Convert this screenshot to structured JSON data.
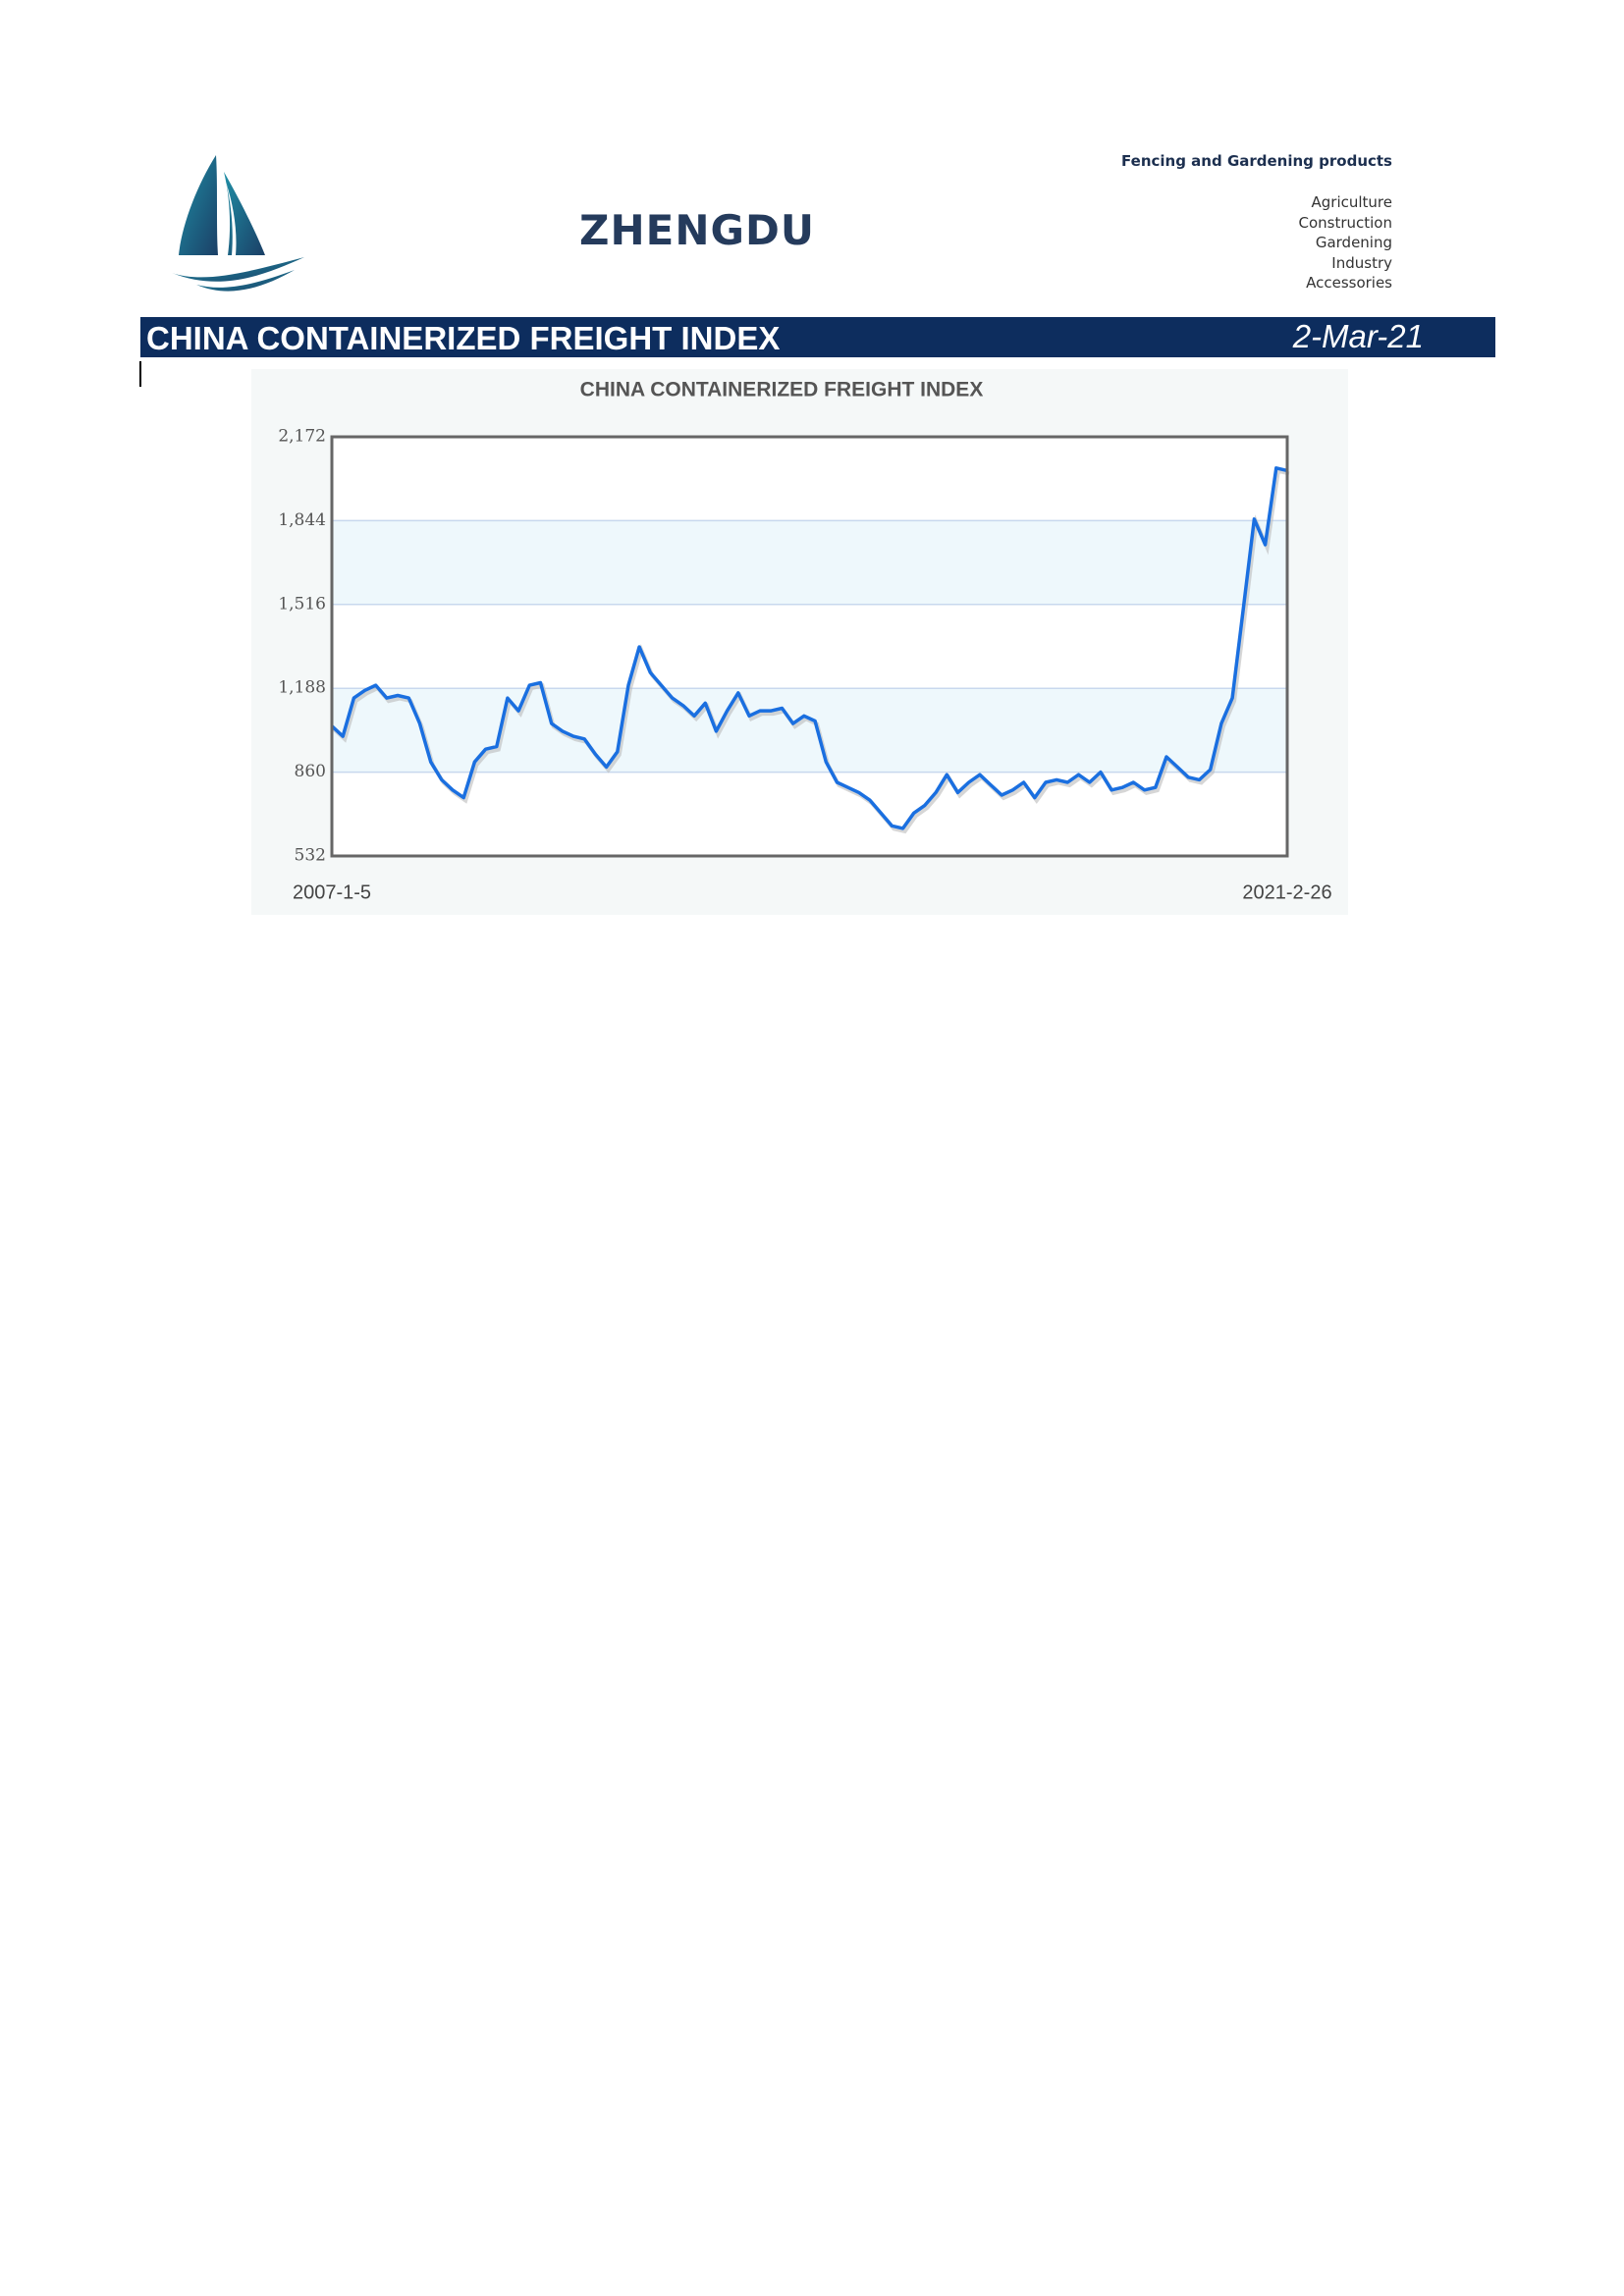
{
  "header": {
    "company": "ZHENGDU",
    "tagline": "Fencing and Gardening products",
    "products": [
      "Agriculture",
      "Construction",
      "Gardening",
      "Industry",
      "Accessories"
    ],
    "banner_title": "CHINA CONTAINERIZED FREIGHT INDEX",
    "banner_date": "2-Mar-21"
  },
  "chart_data": {
    "type": "line",
    "title": "CHINA CONTAINERIZED FREIGHT INDEX",
    "categories": [
      "2007-1-5",
      null,
      null,
      null,
      null,
      null,
      null,
      null,
      null,
      null,
      null,
      null,
      null,
      null,
      null,
      null,
      null,
      null,
      null,
      null,
      null,
      null,
      null,
      null,
      null,
      null,
      null,
      null,
      null,
      null,
      null,
      null,
      null,
      null,
      null,
      null,
      null,
      null,
      null,
      null,
      null,
      null,
      null,
      null,
      null,
      null,
      null,
      null,
      null,
      null,
      null,
      null,
      null,
      null,
      null,
      null,
      null,
      null,
      null,
      null,
      null,
      null,
      null,
      null,
      null,
      null,
      null,
      null,
      null,
      null,
      null,
      null,
      null,
      null,
      null,
      null,
      null,
      null,
      null,
      null,
      null,
      null,
      null,
      null,
      null,
      null,
      null,
      "2021-2-26"
    ],
    "values": [
      1040,
      1000,
      1150,
      1180,
      1200,
      1150,
      1160,
      1150,
      1050,
      900,
      830,
      790,
      760,
      900,
      950,
      960,
      1150,
      1100,
      1200,
      1210,
      1050,
      1020,
      1000,
      990,
      930,
      880,
      940,
      1200,
      1350,
      1250,
      1200,
      1150,
      1120,
      1080,
      1130,
      1020,
      1100,
      1170,
      1080,
      1100,
      1100,
      1110,
      1050,
      1080,
      1060,
      900,
      820,
      800,
      780,
      750,
      700,
      650,
      640,
      700,
      730,
      780,
      850,
      780,
      820,
      850,
      810,
      770,
      790,
      820,
      760,
      820,
      830,
      820,
      850,
      820,
      860,
      790,
      800,
      820,
      790,
      800,
      920,
      880,
      840,
      830,
      870,
      1050,
      1150,
      1500,
      1850,
      1750,
      2050,
      2040
    ],
    "color": "#1a6fe0",
    "ylim": [
      532,
      2172
    ],
    "yticks": [
      532,
      860,
      {
        "value": 1188,
        "label": "1,188"
      },
      {
        "value": 1516,
        "label": "1,516"
      },
      {
        "value": 1844,
        "label": "1,844"
      },
      {
        "value": 2172,
        "label": "2,172"
      }
    ],
    "grid": true
  }
}
